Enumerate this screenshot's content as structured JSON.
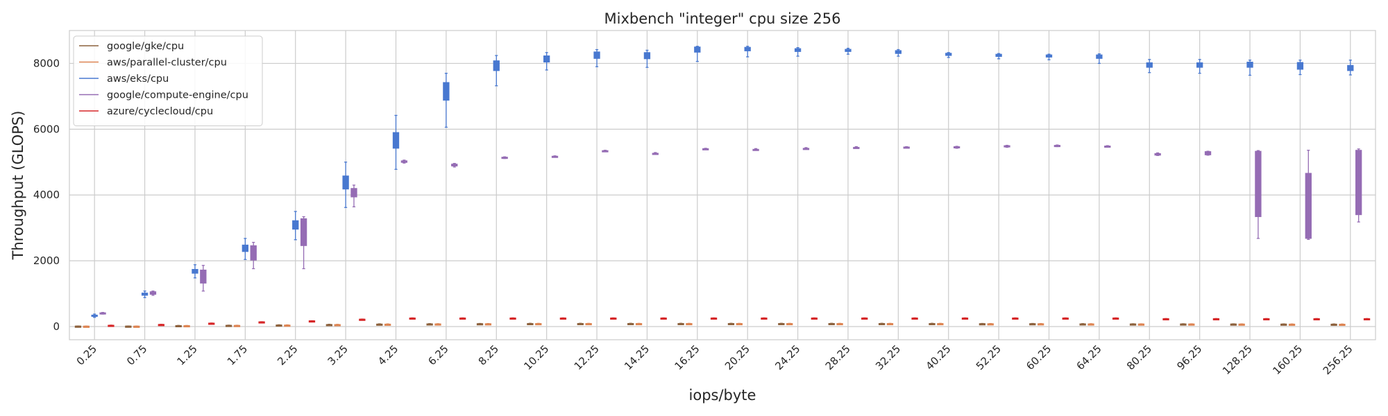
{
  "chart_data": {
    "type": "box",
    "title": "Mixbench \"integer\" cpu size 256",
    "xlabel": "iops/byte",
    "ylabel": "Throughput (GLOPS)",
    "ylim": [
      -400,
      9000
    ],
    "yticks": [
      0,
      2000,
      4000,
      6000,
      8000
    ],
    "grid": true,
    "legend_position": "top-left",
    "categories": [
      "0.25",
      "0.75",
      "1.25",
      "1.75",
      "2.25",
      "3.25",
      "4.25",
      "6.25",
      "8.25",
      "10.25",
      "12.25",
      "14.25",
      "16.25",
      "20.25",
      "24.25",
      "28.25",
      "32.25",
      "40.25",
      "52.25",
      "60.25",
      "64.25",
      "80.25",
      "96.25",
      "128.25",
      "160.25",
      "256.25"
    ],
    "series": [
      {
        "name": "google/gke/cpu",
        "color": "#8c613c",
        "values": [
          [
            10,
            12,
            14,
            16,
            18
          ],
          [
            10,
            12,
            14,
            16,
            18
          ],
          [
            20,
            24,
            28,
            32,
            36
          ],
          [
            28,
            32,
            36,
            40,
            44
          ],
          [
            35,
            40,
            45,
            50,
            55
          ],
          [
            50,
            55,
            60,
            65,
            70
          ],
          [
            60,
            66,
            72,
            78,
            84
          ],
          [
            70,
            75,
            80,
            85,
            90
          ],
          [
            75,
            80,
            85,
            90,
            95
          ],
          [
            80,
            85,
            90,
            95,
            100
          ],
          [
            85,
            88,
            92,
            96,
            100
          ],
          [
            85,
            88,
            92,
            96,
            100
          ],
          [
            85,
            88,
            92,
            96,
            100
          ],
          [
            85,
            88,
            92,
            96,
            100
          ],
          [
            85,
            88,
            92,
            96,
            100
          ],
          [
            85,
            88,
            92,
            96,
            100
          ],
          [
            85,
            88,
            92,
            96,
            100
          ],
          [
            80,
            85,
            90,
            95,
            100
          ],
          [
            75,
            80,
            85,
            90,
            95
          ],
          [
            75,
            80,
            85,
            90,
            95
          ],
          [
            70,
            75,
            80,
            85,
            90
          ],
          [
            70,
            74,
            78,
            82,
            86
          ],
          [
            70,
            74,
            78,
            82,
            86
          ],
          [
            68,
            72,
            76,
            80,
            84
          ],
          [
            66,
            70,
            74,
            78,
            82
          ],
          [
            64,
            68,
            72,
            76,
            80
          ]
        ]
      },
      {
        "name": "aws/parallel-cluster/cpu",
        "color": "#dd8452",
        "values": [
          [
            8,
            10,
            12,
            14,
            16
          ],
          [
            8,
            10,
            12,
            14,
            16
          ],
          [
            18,
            22,
            26,
            30,
            34
          ],
          [
            25,
            29,
            33,
            37,
            41
          ],
          [
            32,
            37,
            42,
            47,
            52
          ],
          [
            48,
            53,
            58,
            63,
            68
          ],
          [
            58,
            64,
            70,
            76,
            82
          ],
          [
            68,
            73,
            78,
            83,
            88
          ],
          [
            73,
            78,
            83,
            88,
            93
          ],
          [
            78,
            83,
            88,
            93,
            98
          ],
          [
            83,
            86,
            90,
            94,
            98
          ],
          [
            83,
            86,
            90,
            94,
            98
          ],
          [
            83,
            86,
            90,
            94,
            98
          ],
          [
            83,
            86,
            90,
            94,
            98
          ],
          [
            83,
            86,
            90,
            94,
            98
          ],
          [
            83,
            86,
            90,
            94,
            98
          ],
          [
            83,
            86,
            90,
            94,
            98
          ],
          [
            78,
            83,
            88,
            93,
            98
          ],
          [
            73,
            78,
            83,
            88,
            93
          ],
          [
            73,
            78,
            83,
            88,
            93
          ],
          [
            68,
            73,
            78,
            83,
            88
          ],
          [
            68,
            72,
            76,
            80,
            84
          ],
          [
            68,
            72,
            76,
            80,
            84
          ],
          [
            66,
            70,
            74,
            78,
            82
          ],
          [
            64,
            68,
            72,
            76,
            80
          ],
          [
            62,
            66,
            70,
            74,
            78
          ]
        ]
      },
      {
        "name": "aws/eks/cpu",
        "color": "#4878d0",
        "values": [
          [
            280,
            310,
            330,
            350,
            380
          ],
          [
            880,
            950,
            980,
            1020,
            1080
          ],
          [
            1480,
            1620,
            1680,
            1740,
            1880
          ],
          [
            2040,
            2280,
            2380,
            2480,
            2680
          ],
          [
            2640,
            2960,
            3100,
            3220,
            3500
          ],
          [
            3620,
            4180,
            4380,
            4580,
            5000
          ],
          [
            4780,
            5420,
            5650,
            5900,
            6420
          ],
          [
            6060,
            6880,
            7150,
            7420,
            7700
          ],
          [
            7320,
            7780,
            7950,
            8080,
            8240
          ],
          [
            7800,
            8040,
            8150,
            8230,
            8330
          ],
          [
            7900,
            8150,
            8250,
            8350,
            8420
          ],
          [
            7880,
            8140,
            8240,
            8330,
            8400
          ],
          [
            8060,
            8340,
            8420,
            8500,
            8520
          ],
          [
            8200,
            8380,
            8440,
            8490,
            8520
          ],
          [
            8220,
            8360,
            8400,
            8450,
            8480
          ],
          [
            8280,
            8360,
            8400,
            8430,
            8460
          ],
          [
            8220,
            8300,
            8350,
            8390,
            8420
          ],
          [
            8180,
            8240,
            8280,
            8310,
            8330
          ],
          [
            8140,
            8210,
            8250,
            8280,
            8300
          ],
          [
            8110,
            8190,
            8230,
            8260,
            8280
          ],
          [
            8000,
            8150,
            8200,
            8260,
            8290
          ],
          [
            7720,
            7880,
            7940,
            8020,
            8120
          ],
          [
            7700,
            7880,
            7940,
            8020,
            8120
          ],
          [
            7640,
            7880,
            7950,
            8040,
            8100
          ],
          [
            7660,
            7820,
            7920,
            8030,
            8100
          ],
          [
            7650,
            7780,
            7850,
            7940,
            8100
          ]
        ]
      },
      {
        "name": "google/compute-engine/cpu",
        "color": "#956cb4",
        "values": [
          [
            380,
            390,
            405,
            420,
            430
          ],
          [
            950,
            980,
            1010,
            1060,
            1080
          ],
          [
            1080,
            1320,
            1540,
            1720,
            1860
          ],
          [
            1760,
            2020,
            2260,
            2460,
            2560
          ],
          [
            1760,
            2460,
            2880,
            3280,
            3340
          ],
          [
            3640,
            3940,
            4080,
            4200,
            4300
          ],
          [
            4970,
            4990,
            5010,
            5040,
            5060
          ],
          [
            4850,
            4880,
            4910,
            4940,
            4960
          ],
          [
            5110,
            5120,
            5135,
            5150,
            5160
          ],
          [
            5150,
            5160,
            5170,
            5180,
            5190
          ],
          [
            5320,
            5330,
            5340,
            5350,
            5360
          ],
          [
            5240,
            5250,
            5260,
            5270,
            5290
          ],
          [
            5380,
            5390,
            5400,
            5410,
            5420
          ],
          [
            5360,
            5370,
            5380,
            5390,
            5410
          ],
          [
            5390,
            5400,
            5410,
            5420,
            5440
          ],
          [
            5420,
            5430,
            5440,
            5450,
            5470
          ],
          [
            5430,
            5440,
            5450,
            5460,
            5470
          ],
          [
            5420,
            5430,
            5450,
            5470,
            5480
          ],
          [
            5450,
            5460,
            5480,
            5500,
            5510
          ],
          [
            5470,
            5480,
            5490,
            5510,
            5520
          ],
          [
            5460,
            5470,
            5480,
            5490,
            5500
          ],
          [
            5200,
            5210,
            5240,
            5260,
            5280
          ],
          [
            5210,
            5220,
            5270,
            5320,
            5330
          ],
          [
            2680,
            3340,
            4600,
            5330,
            5350
          ],
          [
            2650,
            2680,
            3800,
            4660,
            5360
          ],
          [
            3180,
            3400,
            4600,
            5360,
            5400
          ]
        ]
      },
      {
        "name": "azure/cyclecloud/cpu",
        "color": "#d62728",
        "values": [
          [
            36,
            38,
            40,
            42,
            44
          ],
          [
            60,
            62,
            64,
            66,
            68
          ],
          [
            100,
            102,
            104,
            106,
            108
          ],
          [
            140,
            142,
            144,
            146,
            148
          ],
          [
            170,
            172,
            174,
            176,
            178
          ],
          [
            220,
            222,
            224,
            226,
            228
          ],
          [
            255,
            258,
            260,
            262,
            265
          ],
          [
            255,
            258,
            260,
            262,
            265
          ],
          [
            255,
            258,
            260,
            262,
            265
          ],
          [
            255,
            258,
            260,
            262,
            265
          ],
          [
            255,
            258,
            260,
            262,
            265
          ],
          [
            255,
            258,
            260,
            262,
            265
          ],
          [
            255,
            258,
            260,
            262,
            265
          ],
          [
            255,
            258,
            260,
            262,
            265
          ],
          [
            255,
            258,
            260,
            262,
            265
          ],
          [
            255,
            258,
            260,
            262,
            265
          ],
          [
            255,
            258,
            260,
            262,
            265
          ],
          [
            255,
            258,
            260,
            262,
            265
          ],
          [
            255,
            258,
            260,
            262,
            265
          ],
          [
            255,
            258,
            260,
            262,
            265
          ],
          [
            255,
            258,
            260,
            262,
            265
          ],
          [
            235,
            238,
            240,
            242,
            245
          ],
          [
            235,
            238,
            240,
            242,
            245
          ],
          [
            235,
            238,
            240,
            242,
            245
          ],
          [
            235,
            238,
            240,
            242,
            245
          ],
          [
            235,
            238,
            240,
            242,
            245
          ]
        ]
      }
    ]
  }
}
